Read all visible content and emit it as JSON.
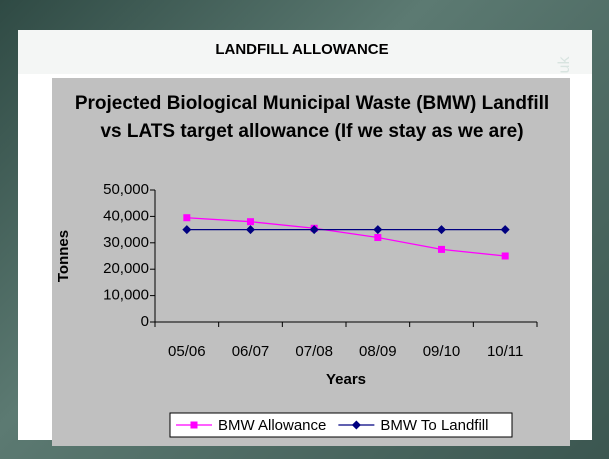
{
  "slide_title": "LANDFILL ALLOWANCE",
  "slide_mark": "uk",
  "chart_data": {
    "type": "line",
    "title": "Projected Biological Municipal Waste (BMW) Landfill vs LATS target allowance (If we stay as we are)",
    "x_label": "Years",
    "y_label": "Tonnes",
    "categories": [
      "05/06",
      "06/07",
      "07/08",
      "08/09",
      "09/10",
      "10/11"
    ],
    "series": [
      {
        "name": "BMW Allowance",
        "color": "#ff00ff",
        "marker": "square",
        "values": [
          39500,
          38000,
          35500,
          32000,
          27500,
          25000
        ]
      },
      {
        "name": "BMW To Landfill",
        "color": "#000080",
        "marker": "diamond",
        "values": [
          35000,
          35000,
          35000,
          35000,
          35000,
          35000
        ]
      }
    ],
    "ylim": [
      0,
      50000
    ],
    "yticks": [
      0,
      {
        "value": 10000,
        "label": "10,000"
      },
      {
        "value": 20000,
        "label": "20,000"
      },
      {
        "value": 30000,
        "label": "30,000"
      },
      {
        "value": 40000,
        "label": "40,000"
      },
      {
        "value": 50000,
        "label": "50,000"
      }
    ],
    "grid": false,
    "legend": "bottom"
  }
}
